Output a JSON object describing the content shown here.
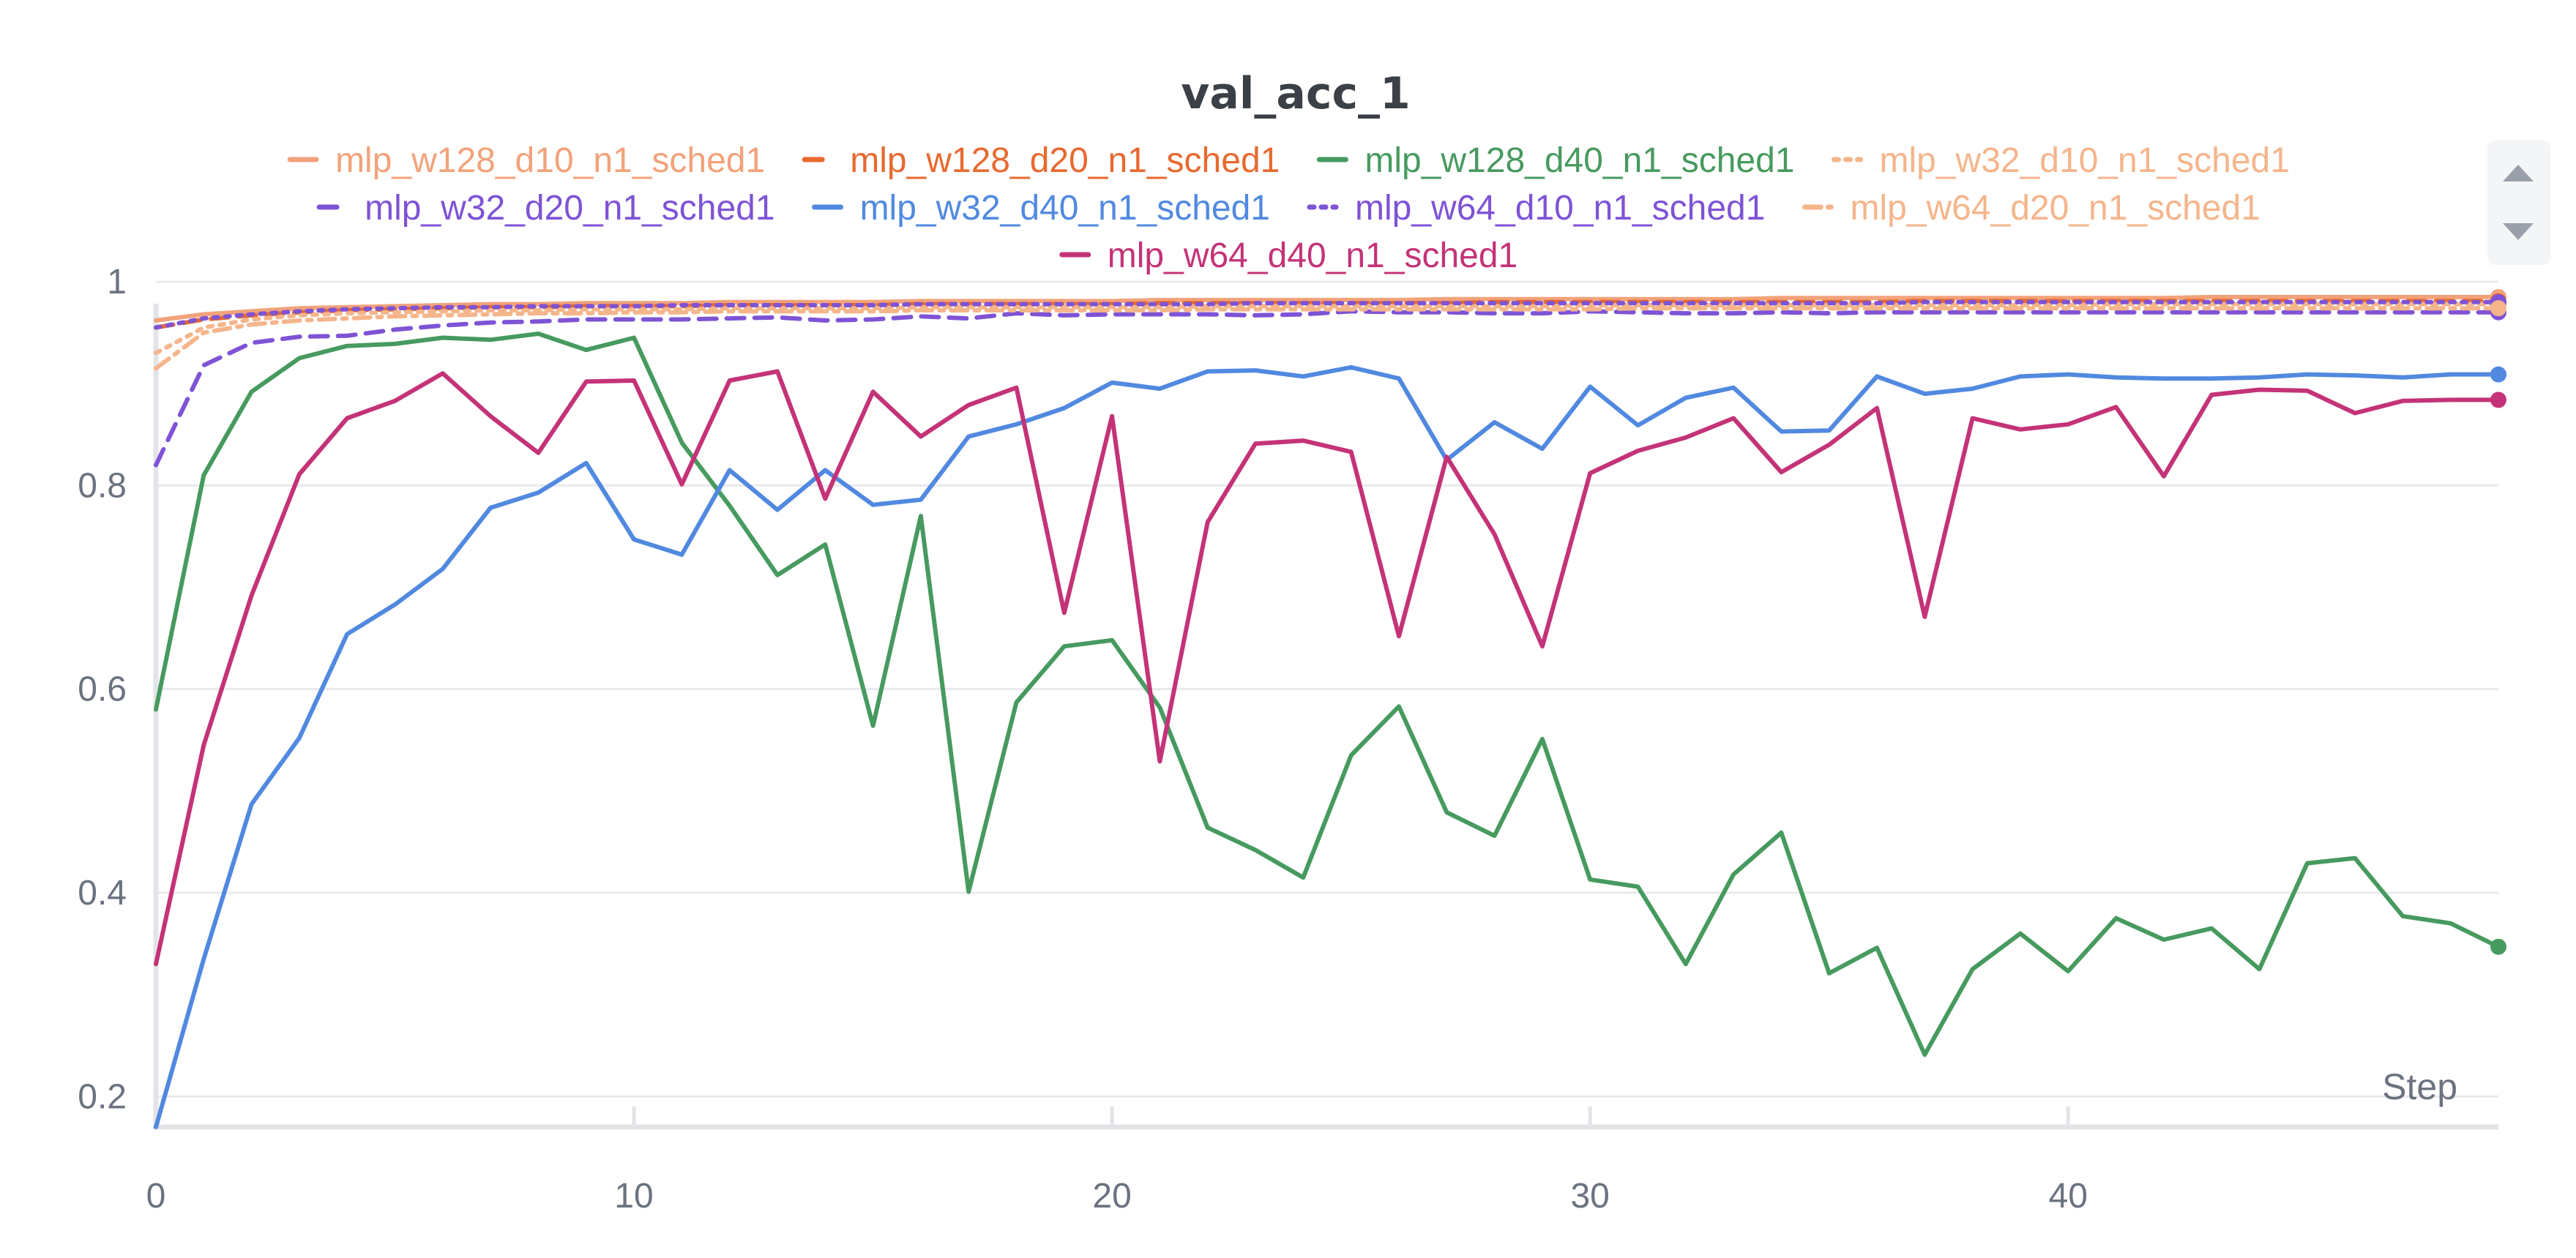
{
  "chart_data": {
    "type": "line",
    "title": "val_acc_1",
    "xlabel": "Step",
    "ylabel": "",
    "xlim": [
      0,
      49
    ],
    "ylim": [
      0.17,
      1.0
    ],
    "x_ticks": [
      0,
      10,
      20,
      30,
      40
    ],
    "y_ticks": [
      0.2,
      0.4,
      0.6,
      0.8,
      1
    ],
    "y_tick_labels": [
      "0.2",
      "0.4",
      "0.6",
      "0.8",
      "1"
    ],
    "grid": true,
    "legend_position": "top",
    "x": [
      0,
      1,
      2,
      3,
      4,
      5,
      6,
      7,
      8,
      9,
      10,
      11,
      12,
      13,
      14,
      15,
      16,
      17,
      18,
      19,
      20,
      21,
      22,
      23,
      24,
      25,
      26,
      27,
      28,
      29,
      30,
      31,
      32,
      33,
      34,
      35,
      36,
      37,
      38,
      39,
      40,
      41,
      42,
      43,
      44,
      45,
      46,
      47,
      48,
      49
    ],
    "series": [
      {
        "name": "mlp_w128_d10_n1_sched1",
        "color": "#f2a27a",
        "dash": "solid",
        "values": [
          0.962,
          0.968,
          0.971,
          0.974,
          0.975,
          0.976,
          0.977,
          0.978,
          0.978,
          0.979,
          0.979,
          0.979,
          0.98,
          0.98,
          0.98,
          0.98,
          0.981,
          0.981,
          0.981,
          0.981,
          0.981,
          0.982,
          0.982,
          0.982,
          0.982,
          0.982,
          0.982,
          0.983,
          0.983,
          0.983,
          0.983,
          0.983,
          0.983,
          0.983,
          0.984,
          0.984,
          0.984,
          0.984,
          0.984,
          0.984,
          0.984,
          0.984,
          0.984,
          0.985,
          0.985,
          0.985,
          0.985,
          0.985,
          0.985,
          0.985
        ]
      },
      {
        "name": "mlp_w128_d20_n1_sched1",
        "color": "#e8692f",
        "dash": "dashed",
        "values": [
          0.955,
          0.963,
          0.967,
          0.97,
          0.972,
          0.973,
          0.974,
          0.975,
          0.975,
          0.976,
          0.976,
          0.976,
          0.977,
          0.977,
          0.977,
          0.977,
          0.978,
          0.978,
          0.978,
          0.978,
          0.978,
          0.979,
          0.979,
          0.979,
          0.979,
          0.979,
          0.979,
          0.979,
          0.98,
          0.98,
          0.98,
          0.98,
          0.98,
          0.98,
          0.98,
          0.98,
          0.98,
          0.981,
          0.981,
          0.981,
          0.981,
          0.981,
          0.981,
          0.981,
          0.981,
          0.981,
          0.981,
          0.981,
          0.981,
          0.981
        ]
      },
      {
        "name": "mlp_w128_d40_n1_sched1",
        "color": "#479a5f",
        "dash": "solid",
        "values": [
          0.58,
          0.81,
          0.892,
          0.925,
          0.937,
          0.939,
          0.945,
          0.943,
          0.949,
          0.933,
          0.945,
          0.842,
          0.78,
          0.712,
          0.742,
          0.564,
          0.77,
          0.401,
          0.587,
          0.642,
          0.648,
          0.582,
          0.464,
          0.442,
          0.415,
          0.535,
          0.583,
          0.479,
          0.456,
          0.551,
          0.413,
          0.406,
          0.33,
          0.418,
          0.459,
          0.321,
          0.346,
          0.241,
          0.325,
          0.36,
          0.323,
          0.375,
          0.354,
          0.365,
          0.325,
          0.429,
          0.434,
          0.377,
          0.37,
          0.347
        ]
      },
      {
        "name": "mlp_w32_d10_n1_sched1",
        "color": "#f5b58b",
        "dash": "dotted",
        "values": [
          0.93,
          0.955,
          0.963,
          0.967,
          0.969,
          0.97,
          0.971,
          0.972,
          0.972,
          0.973,
          0.973,
          0.973,
          0.974,
          0.974,
          0.974,
          0.974,
          0.975,
          0.975,
          0.975,
          0.975,
          0.975,
          0.975,
          0.976,
          0.976,
          0.976,
          0.976,
          0.976,
          0.976,
          0.976,
          0.976,
          0.977,
          0.977,
          0.977,
          0.977,
          0.977,
          0.977,
          0.977,
          0.977,
          0.977,
          0.977,
          0.977,
          0.978,
          0.978,
          0.978,
          0.978,
          0.978,
          0.978,
          0.978,
          0.978,
          0.978
        ]
      },
      {
        "name": "mlp_w32_d20_n1_sched1",
        "color": "#7e53d6",
        "dash": "dashed",
        "values": [
          0.82,
          0.918,
          0.94,
          0.946,
          0.947,
          0.953,
          0.957,
          0.96,
          0.961,
          0.963,
          0.963,
          0.963,
          0.964,
          0.965,
          0.962,
          0.963,
          0.966,
          0.964,
          0.969,
          0.967,
          0.968,
          0.968,
          0.968,
          0.967,
          0.968,
          0.971,
          0.97,
          0.97,
          0.969,
          0.969,
          0.971,
          0.97,
          0.969,
          0.969,
          0.97,
          0.969,
          0.97,
          0.97,
          0.97,
          0.97,
          0.97,
          0.97,
          0.97,
          0.97,
          0.97,
          0.97,
          0.97,
          0.97,
          0.97,
          0.97
        ]
      },
      {
        "name": "mlp_w32_d40_n1_sched1",
        "color": "#5189e0",
        "dash": "solid",
        "values": [
          0.17,
          0.335,
          0.487,
          0.552,
          0.654,
          0.683,
          0.718,
          0.778,
          0.793,
          0.822,
          0.747,
          0.732,
          0.815,
          0.776,
          0.815,
          0.781,
          0.786,
          0.848,
          0.86,
          0.876,
          0.901,
          0.895,
          0.912,
          0.913,
          0.907,
          0.916,
          0.905,
          0.825,
          0.862,
          0.836,
          0.897,
          0.859,
          0.886,
          0.896,
          0.853,
          0.854,
          0.907,
          0.89,
          0.895,
          0.907,
          0.909,
          0.906,
          0.905,
          0.905,
          0.906,
          0.909,
          0.908,
          0.906,
          0.909,
          0.909
        ]
      },
      {
        "name": "mlp_w64_d10_n1_sched1",
        "color": "#7e53d6",
        "dash": "dotted",
        "values": [
          0.955,
          0.964,
          0.968,
          0.971,
          0.973,
          0.974,
          0.975,
          0.975,
          0.976,
          0.976,
          0.976,
          0.977,
          0.977,
          0.977,
          0.977,
          0.977,
          0.978,
          0.978,
          0.978,
          0.978,
          0.978,
          0.978,
          0.978,
          0.979,
          0.979,
          0.979,
          0.979,
          0.979,
          0.979,
          0.979,
          0.979,
          0.979,
          0.979,
          0.979,
          0.979,
          0.979,
          0.979,
          0.98,
          0.98,
          0.98,
          0.98,
          0.98,
          0.98,
          0.98,
          0.98,
          0.98,
          0.98,
          0.98,
          0.98,
          0.98
        ]
      },
      {
        "name": "mlp_w64_d20_n1_sched1",
        "color": "#f5b58b",
        "dash": "dashdot",
        "values": [
          0.915,
          0.95,
          0.958,
          0.962,
          0.964,
          0.966,
          0.967,
          0.968,
          0.969,
          0.969,
          0.97,
          0.97,
          0.971,
          0.971,
          0.971,
          0.971,
          0.972,
          0.972,
          0.972,
          0.972,
          0.972,
          0.972,
          0.973,
          0.973,
          0.973,
          0.973,
          0.973,
          0.973,
          0.973,
          0.973,
          0.973,
          0.974,
          0.974,
          0.974,
          0.974,
          0.974,
          0.974,
          0.974,
          0.974,
          0.974,
          0.974,
          0.974,
          0.974,
          0.974,
          0.974,
          0.974,
          0.974,
          0.974,
          0.974,
          0.974
        ]
      },
      {
        "name": "mlp_w64_d40_n1_sched1",
        "color": "#c43377",
        "dash": "solid",
        "values": [
          0.33,
          0.545,
          0.692,
          0.811,
          0.866,
          0.883,
          0.91,
          0.868,
          0.832,
          0.902,
          0.903,
          0.801,
          0.903,
          0.912,
          0.787,
          0.892,
          0.848,
          0.879,
          0.896,
          0.675,
          0.868,
          0.529,
          0.764,
          0.841,
          0.844,
          0.833,
          0.652,
          0.828,
          0.752,
          0.642,
          0.812,
          0.834,
          0.847,
          0.866,
          0.813,
          0.84,
          0.876,
          0.671,
          0.866,
          0.855,
          0.86,
          0.877,
          0.809,
          0.889,
          0.894,
          0.893,
          0.871,
          0.883,
          0.884,
          0.884
        ]
      }
    ]
  },
  "legend_scroll": {
    "up_icon": "scroll-up-icon",
    "down_icon": "scroll-down-icon"
  }
}
